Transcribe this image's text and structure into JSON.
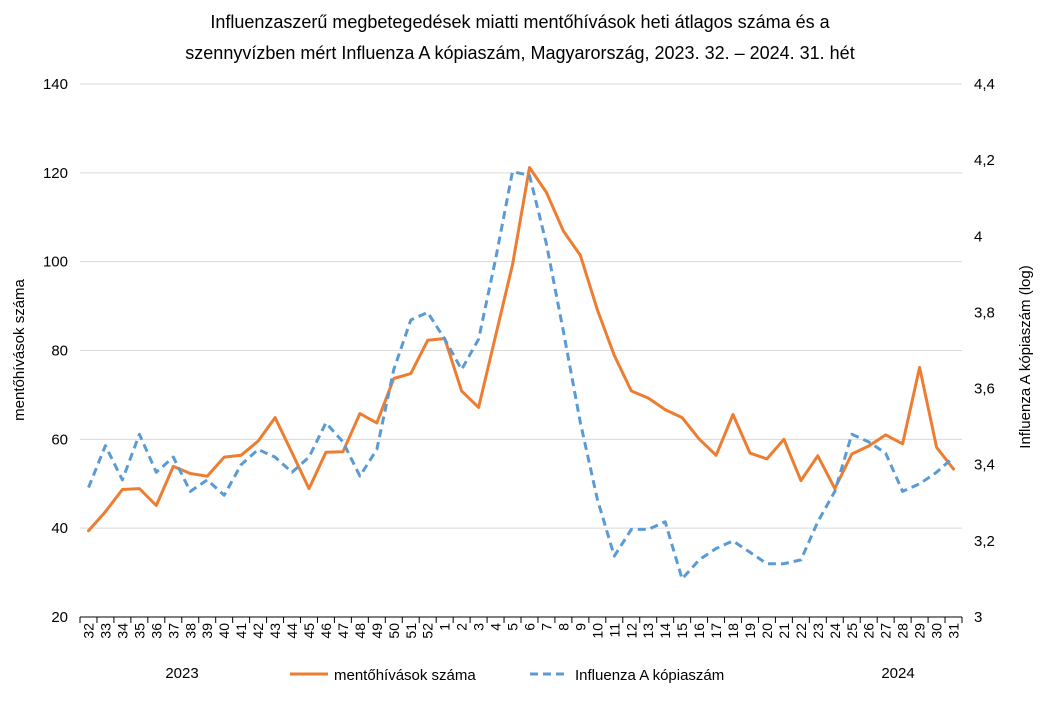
{
  "chart_data": {
    "type": "line",
    "title_lines": [
      "Influenzaszerű megbetegedések miatti mentőhívások heti átlagos száma és a",
      "szennyvízben mért Influenza A kópiaszám, Magyarország, 2023. 32. – 2024. 31. hét"
    ],
    "ylabel": "mentőhívások száma",
    "y2label": "Influenza A kópiaszám (log)",
    "ylim": [
      20,
      140
    ],
    "y2lim": [
      3,
      4.4
    ],
    "yticks": [
      "20",
      "40",
      "60",
      "80",
      "100",
      "120",
      "140"
    ],
    "y2ticks": [
      "3",
      "3,2",
      "3,4",
      "3,6",
      "3,8",
      "4",
      "4,2",
      "4,4"
    ],
    "categories": [
      "32",
      "33",
      "34",
      "35",
      "36",
      "37",
      "38",
      "39",
      "40",
      "41",
      "42",
      "43",
      "44",
      "45",
      "46",
      "47",
      "48",
      "49",
      "50",
      "51",
      "52",
      "1",
      "2",
      "3",
      "4",
      "5",
      "6",
      "7",
      "8",
      "9",
      "10",
      "11",
      "12",
      "13",
      "14",
      "15",
      "16",
      "17",
      "18",
      "19",
      "20",
      "21",
      "22",
      "23",
      "24",
      "25",
      "26",
      "27",
      "28",
      "29",
      "30",
      "31"
    ],
    "year_labels": [
      "2023",
      "2024"
    ],
    "series": [
      {
        "name": "mentőhívások száma",
        "axis": "left",
        "color": "#ED7D31",
        "style": "solid",
        "values": [
          39.4,
          43.7,
          48.7,
          48.9,
          45.1,
          53.9,
          52.3,
          51.7,
          56.0,
          56.4,
          59.6,
          64.9,
          57.0,
          48.9,
          57.1,
          57.2,
          65.8,
          63.7,
          73.7,
          74.8,
          82.3,
          82.7,
          70.9,
          67.2,
          83.3,
          99.3,
          121.2,
          115.6,
          106.9,
          101.4,
          89.2,
          78.9,
          70.9,
          69.3,
          66.7,
          64.9,
          60.1,
          56.4,
          65.6,
          56.9,
          55.6,
          60.0,
          50.7,
          56.3,
          48.9,
          56.7,
          58.5,
          61.0,
          59.0,
          76.2,
          58.2,
          53.3
        ]
      },
      {
        "name": "Influenza A kópiaszám",
        "axis": "right",
        "color": "#5B9BD5",
        "style": "dashed",
        "values": [
          3.34,
          3.45,
          3.36,
          3.48,
          3.38,
          3.42,
          3.33,
          3.36,
          3.32,
          3.4,
          3.44,
          3.42,
          3.38,
          3.42,
          3.51,
          3.46,
          3.37,
          3.44,
          3.65,
          3.78,
          3.8,
          3.73,
          3.65,
          3.73,
          3.94,
          4.17,
          4.16,
          3.98,
          3.75,
          3.51,
          3.31,
          3.16,
          3.23,
          3.23,
          3.25,
          3.1,
          3.15,
          3.18,
          3.2,
          3.17,
          3.14,
          3.14,
          3.15,
          3.25,
          3.33,
          3.48,
          3.46,
          3.43,
          3.33,
          3.35,
          3.38,
          3.42
        ]
      }
    ]
  }
}
